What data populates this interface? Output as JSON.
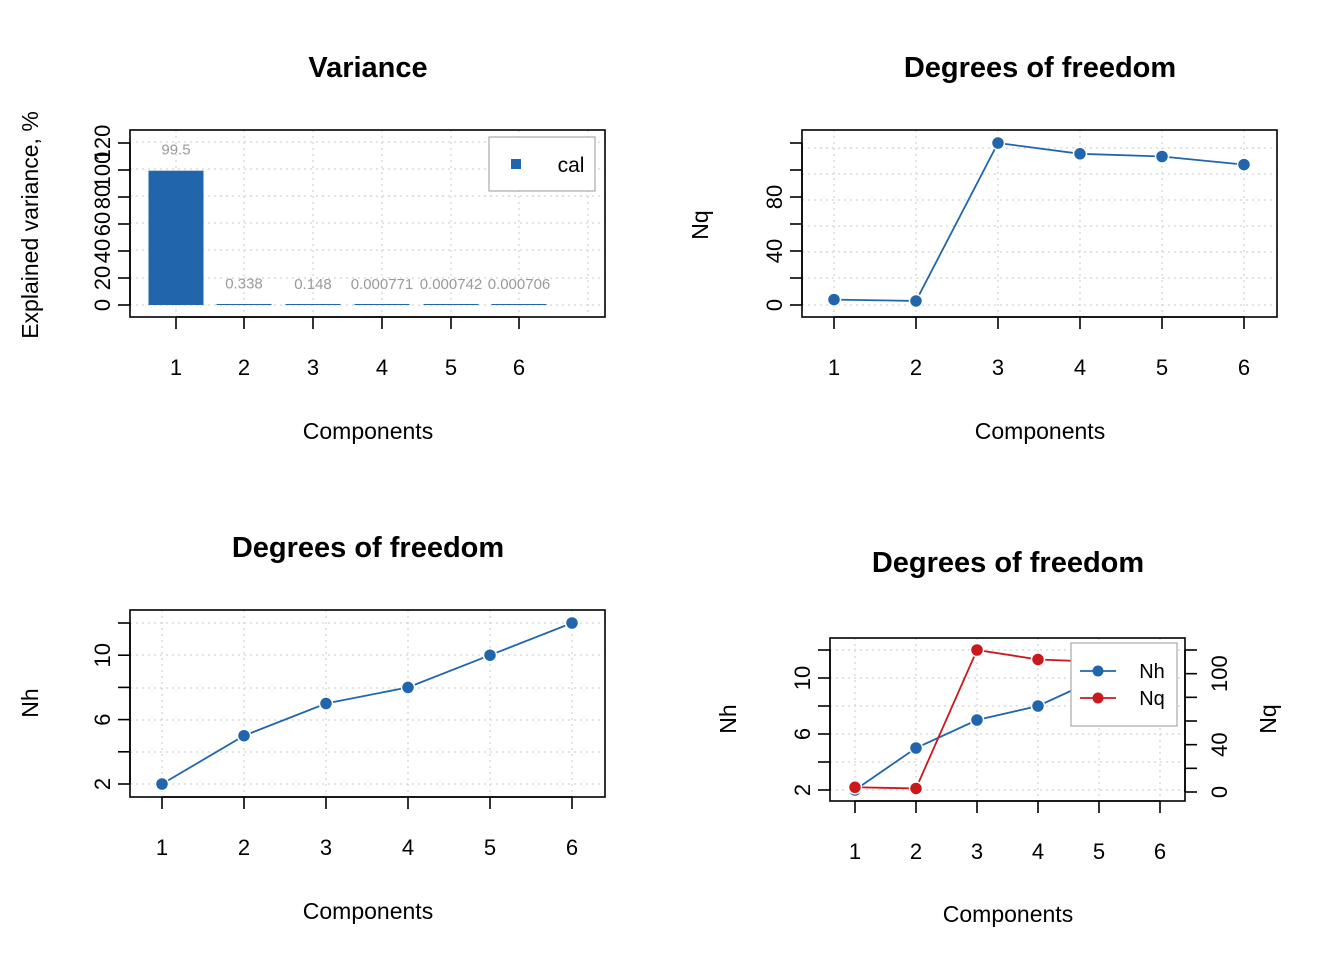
{
  "chart_data": [
    {
      "type": "bar",
      "title": "Variance",
      "xlabel": "Components",
      "ylabel": "Explained variance, %",
      "categories": [
        "1",
        "2",
        "3",
        "4",
        "5",
        "6"
      ],
      "series": [
        {
          "name": "cal",
          "values": [
            99.5,
            0.338,
            0.148,
            0.000771,
            0.000742,
            0.000706
          ],
          "color": "#2166AC",
          "labels": [
            "99.5",
            "0.338",
            "0.148",
            "0.000771",
            "0.000742",
            "0.000706"
          ]
        }
      ],
      "ylim": [
        0,
        120
      ],
      "yticks": [
        "0",
        "20",
        "40",
        "60",
        "80",
        "100",
        "120"
      ],
      "grid": true,
      "legend": "top-right"
    },
    {
      "type": "line",
      "title": "Degrees of freedom",
      "xlabel": "Components",
      "ylabel": "Nq",
      "x": [
        "1",
        "2",
        "3",
        "4",
        "5",
        "6"
      ],
      "series": [
        {
          "name": "Nq",
          "values": [
            4,
            3,
            120,
            112,
            110,
            104
          ],
          "color": "#2166AC"
        }
      ],
      "ylim": [
        0,
        120
      ],
      "yticks": [
        "0",
        "40",
        "80"
      ],
      "grid": true
    },
    {
      "type": "line",
      "title": "Degrees of freedom",
      "xlabel": "Components",
      "ylabel": "Nh",
      "x": [
        "1",
        "2",
        "3",
        "4",
        "5",
        "6"
      ],
      "series": [
        {
          "name": "Nh",
          "values": [
            2,
            5,
            7,
            8,
            10,
            12
          ],
          "color": "#2166AC"
        }
      ],
      "ylim": [
        2,
        12
      ],
      "yticks": [
        "2",
        "6",
        "10"
      ],
      "grid": true
    },
    {
      "type": "line",
      "title": "Degrees of freedom",
      "xlabel": "Components",
      "ylabel": "Nh",
      "ylabel_right": "Nq",
      "x": [
        "1",
        "2",
        "3",
        "4",
        "5",
        "6"
      ],
      "series": [
        {
          "name": "Nh",
          "values": [
            2,
            5,
            7,
            8,
            10,
            12
          ],
          "color": "#2166AC",
          "axis": "left"
        },
        {
          "name": "Nq",
          "values": [
            4,
            3,
            120,
            112,
            110,
            104
          ],
          "color": "#CB181D",
          "axis": "right"
        }
      ],
      "ylim": [
        2,
        12
      ],
      "ylim_right": [
        0,
        120
      ],
      "yticks": [
        "2",
        "6",
        "10"
      ],
      "yticks_right": [
        "0",
        "40",
        "100"
      ],
      "grid": true,
      "legend": "top-right"
    }
  ]
}
